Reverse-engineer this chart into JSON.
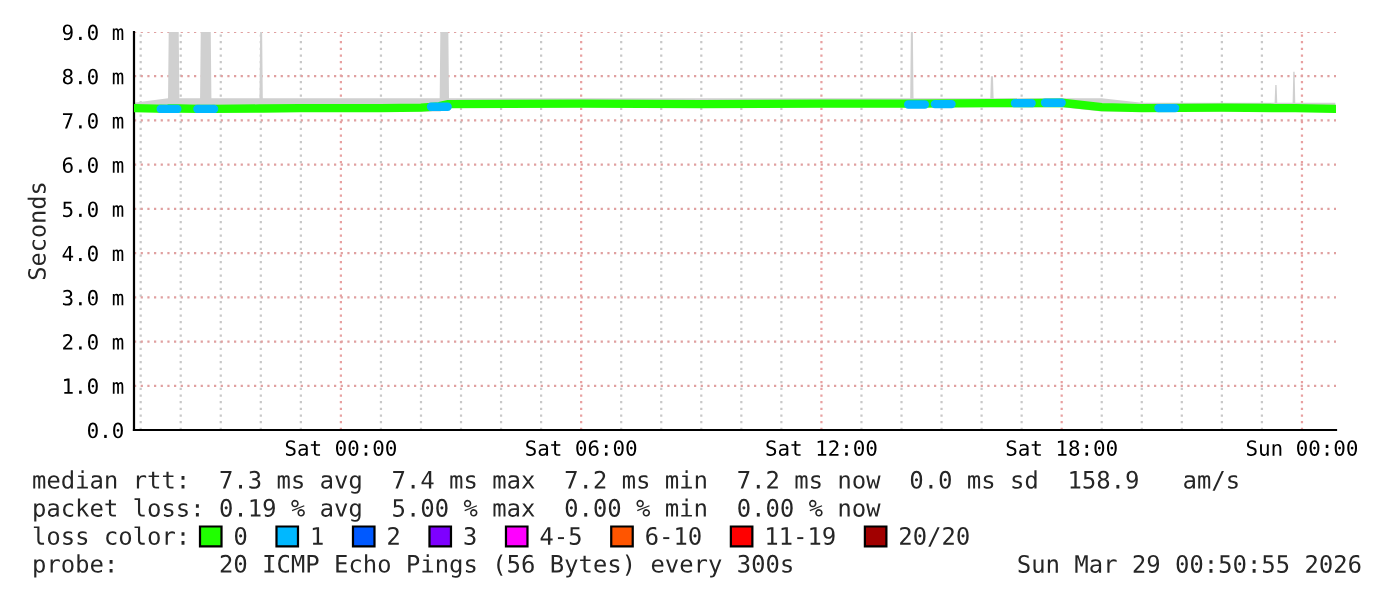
{
  "chart_data": {
    "type": "line",
    "ylabel": "Seconds",
    "legend_title": "loss color:",
    "legend": "bottom",
    "grid": true,
    "marker": "none",
    "line_style": "solid",
    "xlim": [
      "2026-03-27T18:50",
      "2026-03-29T00:51"
    ],
    "xticks": [
      {
        "value": "2026-03-27T19:00",
        "label": null
      },
      {
        "value": "2026-03-27T20:00",
        "label": null
      },
      {
        "value": "2026-03-27T21:00",
        "label": null
      },
      {
        "value": "2026-03-27T22:00",
        "label": null
      },
      {
        "value": "2026-03-27T23:00",
        "label": null
      },
      {
        "value": "2026-03-28T00:00",
        "label": "Sat 00:00"
      },
      {
        "value": "2026-03-28T01:00",
        "label": null
      },
      {
        "value": "2026-03-28T02:00",
        "label": null
      },
      {
        "value": "2026-03-28T03:00",
        "label": null
      },
      {
        "value": "2026-03-28T04:00",
        "label": null
      },
      {
        "value": "2026-03-28T05:00",
        "label": null
      },
      {
        "value": "2026-03-28T06:00",
        "label": "Sat 06:00"
      },
      {
        "value": "2026-03-28T07:00",
        "label": null
      },
      {
        "value": "2026-03-28T08:00",
        "label": null
      },
      {
        "value": "2026-03-28T09:00",
        "label": null
      },
      {
        "value": "2026-03-28T10:00",
        "label": null
      },
      {
        "value": "2026-03-28T11:00",
        "label": null
      },
      {
        "value": "2026-03-28T12:00",
        "label": "Sat 12:00"
      },
      {
        "value": "2026-03-28T13:00",
        "label": null
      },
      {
        "value": "2026-03-28T14:00",
        "label": null
      },
      {
        "value": "2026-03-28T15:00",
        "label": null
      },
      {
        "value": "2026-03-28T16:00",
        "label": null
      },
      {
        "value": "2026-03-28T17:00",
        "label": null
      },
      {
        "value": "2026-03-28T18:00",
        "label": "Sat 18:00"
      },
      {
        "value": "2026-03-28T19:00",
        "label": null
      },
      {
        "value": "2026-03-28T20:00",
        "label": null
      },
      {
        "value": "2026-03-28T21:00",
        "label": null
      },
      {
        "value": "2026-03-28T22:00",
        "label": null
      },
      {
        "value": "2026-03-28T23:00",
        "label": null
      },
      {
        "value": "2026-03-29T00:00",
        "label": "Sun 00:00"
      }
    ],
    "ylim": [
      0,
      9
    ],
    "yticks": [
      {
        "value": 0,
        "label": "0.0"
      },
      {
        "value": 1,
        "label": "1.0 m"
      },
      {
        "value": 2,
        "label": "2.0 m"
      },
      {
        "value": 3,
        "label": "3.0 m"
      },
      {
        "value": 4,
        "label": "4.0 m"
      },
      {
        "value": 5,
        "label": "5.0 m"
      },
      {
        "value": 6,
        "label": "6.0 m"
      },
      {
        "value": 7,
        "label": "7.0 m"
      },
      {
        "value": 8,
        "label": "8.0 m"
      },
      {
        "value": 9,
        "label": "9.0 m"
      }
    ],
    "series": [
      {
        "name": "0",
        "color": "#20ff00",
        "x": [
          "2026-03-27T18:50",
          "2026-03-27T19:41",
          "2026-03-27T19:42",
          "2026-03-27T19:57",
          "2026-03-27T19:58",
          "2026-03-27T20:29",
          "2026-03-27T20:30",
          "2026-03-27T20:45",
          "2026-03-27T20:46",
          "2026-03-27T21:58",
          "2026-03-27T21:59",
          "2026-03-27T22:02",
          "2026-03-27T22:03",
          "2026-03-27T23:00",
          "2026-03-28T00:00",
          "2026-03-28T01:00",
          "2026-03-28T02:00",
          "2026-03-28T02:28",
          "2026-03-28T02:29",
          "2026-03-28T02:41",
          "2026-03-28T02:42",
          "2026-03-28T06:00",
          "2026-03-28T09:00",
          "2026-03-28T12:00",
          "2026-03-28T14:13",
          "2026-03-28T14:14",
          "2026-03-28T14:17",
          "2026-03-28T14:18",
          "2026-03-28T16:13",
          "2026-03-28T16:14",
          "2026-03-28T16:17",
          "2026-03-28T16:18",
          "2026-03-28T18:00",
          "2026-03-28T19:00",
          "2026-03-28T20:00",
          "2026-03-28T22:00",
          "2026-03-28T23:19",
          "2026-03-28T23:20",
          "2026-03-28T23:22",
          "2026-03-28T23:23",
          "2026-03-28T23:46",
          "2026-03-28T23:47",
          "2026-03-28T23:49",
          "2026-03-28T23:50",
          "2026-03-29T00:50"
        ],
        "values": [
          7.28,
          7.26,
          7.27,
          7.27,
          7.27,
          7.26,
          7.26,
          7.26,
          7.26,
          7.27,
          7.27,
          7.27,
          7.27,
          7.28,
          7.28,
          7.28,
          7.29,
          7.32,
          7.33,
          7.37,
          7.37,
          7.38,
          7.37,
          7.38,
          7.38,
          7.38,
          7.38,
          7.38,
          7.39,
          7.39,
          7.39,
          7.39,
          7.4,
          7.3,
          7.28,
          7.29,
          7.28,
          7.28,
          7.28,
          7.28,
          7.28,
          7.28,
          7.28,
          7.28,
          7.26
        ],
        "lower": [
          7.2,
          7.2,
          7.2,
          7.2,
          7.2,
          7.2,
          7.2,
          7.2,
          7.2,
          7.2,
          7.2,
          7.2,
          7.2,
          7.2,
          7.2,
          7.2,
          7.2,
          7.2,
          7.2,
          7.3,
          7.3,
          7.3,
          7.3,
          7.3,
          7.3,
          7.3,
          7.3,
          7.3,
          7.3,
          7.3,
          7.3,
          7.3,
          7.3,
          7.2,
          7.2,
          7.2,
          7.2,
          7.2,
          7.2,
          7.2,
          7.2,
          7.2,
          7.2,
          7.2,
          7.2
        ],
        "upper": [
          7.4,
          7.5,
          9,
          9,
          7.5,
          7.5,
          9,
          9,
          7.5,
          7.5,
          9,
          9,
          7.5,
          7.5,
          7.5,
          7.5,
          7.5,
          7.5,
          9,
          9,
          7.5,
          7.5,
          7.5,
          7.5,
          7.5,
          9,
          9,
          7.5,
          7.5,
          8,
          8,
          7.5,
          7.5,
          7.5,
          7.4,
          7.4,
          7.4,
          7.8,
          7.8,
          7.4,
          7.4,
          8.1,
          8.1,
          7.4,
          7.4
        ]
      },
      {
        "name": "1",
        "color": "#00b8ff",
        "x": [
          "2026-03-27T19:30",
          "2026-03-27T19:55",
          "2026-03-27T20:00",
          "2026-03-27T20:25",
          "2026-03-27T20:50",
          "2026-03-27T20:55",
          "2026-03-28T02:15",
          "2026-03-28T02:40",
          "2026-03-28T02:45",
          "2026-03-28T14:10",
          "2026-03-28T14:35",
          "2026-03-28T14:40",
          "2026-03-28T14:50",
          "2026-03-28T15:15",
          "2026-03-28T15:20",
          "2026-03-28T16:50",
          "2026-03-28T17:15",
          "2026-03-28T17:20",
          "2026-03-28T17:35",
          "2026-03-28T18:00",
          "2026-03-28T18:05",
          "2026-03-28T20:25",
          "2026-03-28T20:50"
        ],
        "values": [
          7.26,
          7.26,
          null,
          7.26,
          7.26,
          null,
          7.31,
          7.31,
          null,
          7.36,
          7.36,
          null,
          7.37,
          7.37,
          null,
          7.39,
          7.39,
          null,
          7.4,
          7.4,
          null,
          7.28,
          7.28
        ]
      },
      {
        "name": "2",
        "color": "#0059ff"
      },
      {
        "name": "3",
        "color": "#7e00ff"
      },
      {
        "name": "4-5",
        "color": "#ff00ff"
      },
      {
        "name": "6-10",
        "color": "#ff5500"
      },
      {
        "name": "11-19",
        "color": "#ff0000"
      },
      {
        "name": "20/20",
        "color": "#a10000"
      }
    ],
    "annotations": [
      "median rtt:  7.3 ms avg  7.4 ms max  7.2 ms min  7.2 ms now  0.0 ms sd  158.9   am/s",
      "packet loss: 0.19 % avg  5.00 % max  0.00 % min  0.00 % now",
      "probe:       20 ICMP Echo Pings (56 Bytes) every 300s",
      "Sun Mar 29 00:50:55 2026"
    ]
  }
}
